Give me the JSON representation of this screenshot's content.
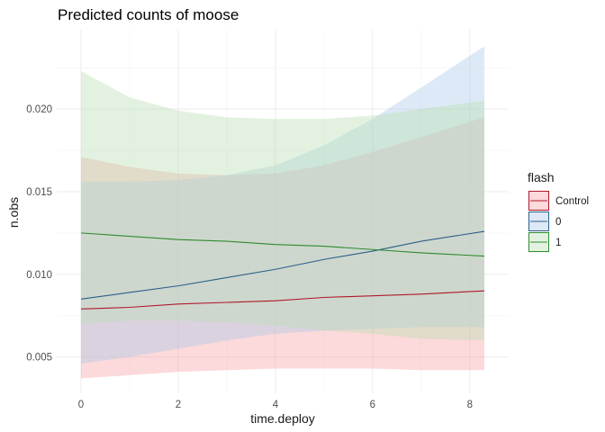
{
  "chart_data": {
    "type": "line",
    "title": "Predicted counts of moose",
    "xlabel": "time.deploy",
    "ylabel": "n.obs",
    "xlim": [
      -0.5,
      8.8
    ],
    "ylim": [
      0.0028,
      0.0248
    ],
    "x_ticks": [
      0,
      2,
      4,
      6,
      8
    ],
    "x_tick_labels": [
      "0",
      "2",
      "4",
      "6",
      "8"
    ],
    "y_ticks": [
      0.005,
      0.01,
      0.015,
      0.02
    ],
    "y_tick_labels": [
      "0.005",
      "0.010",
      "0.015",
      "0.020"
    ],
    "grid": true,
    "legend": {
      "title": "flash",
      "position": "right"
    },
    "x": [
      0,
      1,
      2,
      3,
      4,
      5,
      6,
      7,
      8.3
    ],
    "series": [
      {
        "name": "Control",
        "color": "#b2182b",
        "fill": "#f8a0a6",
        "y": [
          0.0079,
          0.008,
          0.0082,
          0.0083,
          0.0084,
          0.0086,
          0.0087,
          0.0088,
          0.009
        ],
        "upper": [
          0.0171,
          0.0165,
          0.0161,
          0.016,
          0.0161,
          0.0166,
          0.0174,
          0.0183,
          0.0195
        ],
        "lower": [
          0.0037,
          0.0039,
          0.0041,
          0.0042,
          0.0043,
          0.0043,
          0.0043,
          0.0042,
          0.0042
        ]
      },
      {
        "name": "0",
        "color": "#2c5f8a",
        "fill": "#a9c8e8",
        "y": [
          0.0085,
          0.0089,
          0.0093,
          0.0098,
          0.0103,
          0.0109,
          0.0114,
          0.012,
          0.0126
        ],
        "upper": [
          0.0156,
          0.0156,
          0.0157,
          0.016,
          0.0166,
          0.0178,
          0.0194,
          0.0213,
          0.0238
        ],
        "lower": [
          0.0046,
          0.005,
          0.0055,
          0.006,
          0.0064,
          0.0066,
          0.0067,
          0.0068,
          0.0068
        ]
      },
      {
        "name": "1",
        "color": "#2e8b2e",
        "fill": "#b9dfb2",
        "y": [
          0.0125,
          0.0123,
          0.0121,
          0.012,
          0.0118,
          0.0117,
          0.0115,
          0.0113,
          0.0111
        ],
        "upper": [
          0.0223,
          0.0207,
          0.0199,
          0.0195,
          0.0194,
          0.0194,
          0.0196,
          0.02,
          0.0205
        ],
        "lower": [
          0.007,
          0.0072,
          0.0072,
          0.0071,
          0.0069,
          0.0066,
          0.0064,
          0.0061,
          0.006
        ]
      }
    ]
  }
}
